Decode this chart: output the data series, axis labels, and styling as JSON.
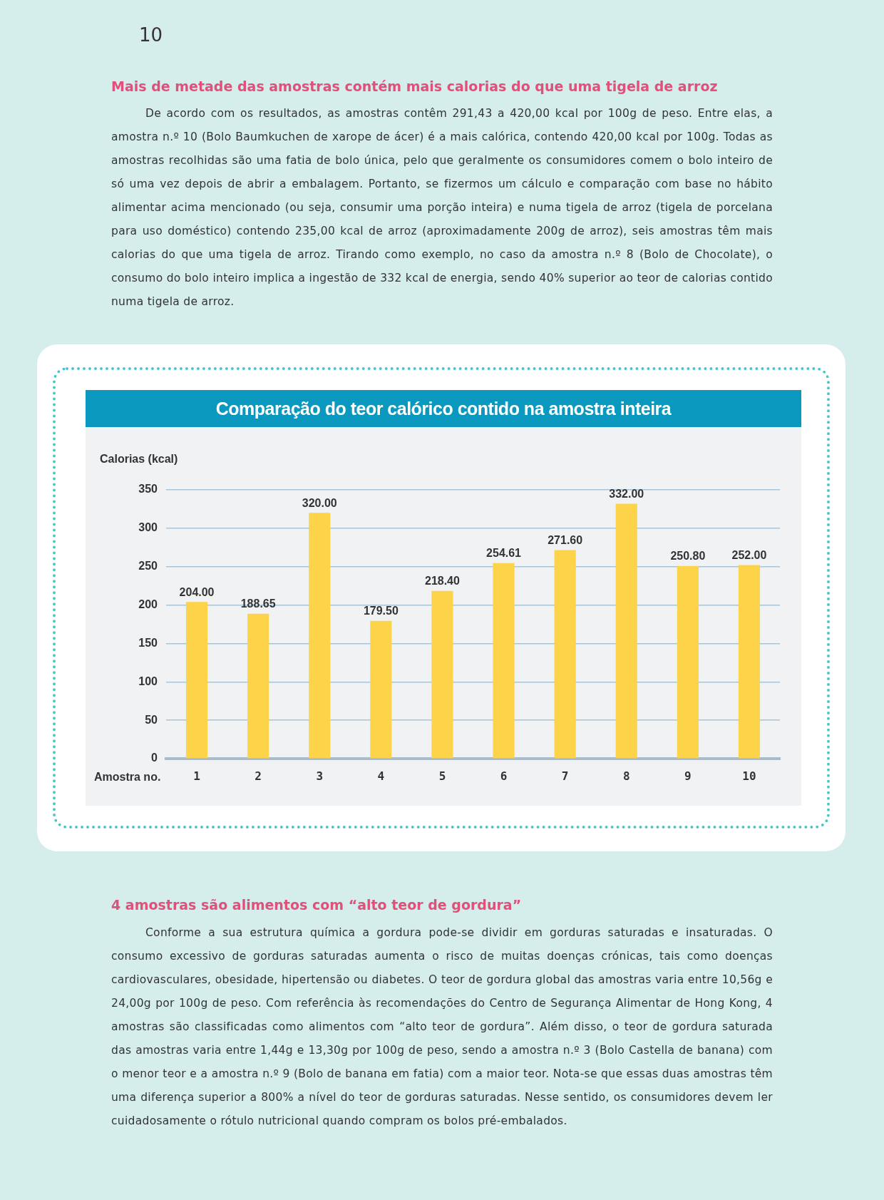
{
  "chart_data": {
    "type": "bar",
    "title": "Comparação do teor calórico contido na amostra inteira",
    "xlabel": "Amostra no.",
    "ylabel": "Calorias (kcal)",
    "categories": [
      "1",
      "2",
      "3",
      "4",
      "5",
      "6",
      "7",
      "8",
      "9",
      "10"
    ],
    "values": [
      204.0,
      188.65,
      320.0,
      179.5,
      218.4,
      254.61,
      271.6,
      332.0,
      250.8,
      252.0
    ],
    "color": "#fdd34a",
    "ylim": [
      0,
      350
    ],
    "yticks": [
      0,
      50,
      100,
      150,
      200,
      250,
      300,
      350
    ],
    "grid": "y",
    "value_labels": [
      "204.00",
      "188.65",
      "320.00",
      "179.50",
      "218.40",
      "254.61",
      "271.60",
      "332.00",
      "250.80",
      "252.00"
    ],
    "annotations": [
      "10",
      "Mais de metade das amostras contém mais calorias do que uma tigela de arroz",
      "De acordo com os resultados, as amostras contêm 291,43 a 420,00 kcal por 100g de peso. Entre elas, a amostra n.º 10 (Bolo Baumkuchen de xarope de ácer) é a mais calórica, contendo 420,00 kcal por 100g. Todas as amostras recolhidas são uma fatia de bolo única, pelo que geralmente os consumidores comem o bolo inteiro de só uma vez depois de abrir a embalagem. Portanto, se fizermos um cálculo e comparação com base no hábito alimentar acima mencionado (ou seja, consumir uma porção inteira) e numa tigela de arroz (tigela de porcelana para uso doméstico) contendo 235,00 kcal de arroz (aproximadamente 200g de arroz), seis amostras têm mais calorias do que uma tigela de arroz. Tirando como exemplo, no caso da amostra n.º 8 (Bolo de Chocolate), o consumo do bolo inteiro implica a ingestão de 332 kcal de energia, sendo 40% superior ao teor de calorias contido numa tigela de arroz.",
      "4 amostras são alimentos com “alto teor de gordura”",
      "Conforme a sua estrutura química a gordura pode-se dividir em gorduras saturadas e insaturadas. O consumo excessivo de gorduras saturadas aumenta o risco de muitas doenças crónicas, tais como doenças cardiovasculares, obesidade, hipertensão ou diabetes. O teor de gordura global das amostras varia entre 10,56g e 24,00g por 100g de peso. Com referência às recomendações do Centro de Segurança Alimentar de Hong Kong, 4 amostras são classificadas como alimentos com “alto teor de gordura”. Além disso, o teor de gordura saturada das amostras varia entre 1,44g e 13,30g por 100g de peso, sendo a amostra n.º 3 (Bolo Castella de banana) com o menor teor e a amostra n.º 9 (Bolo de banana em fatia) com a maior teor. Nota-se que essas duas amostras têm uma diferença superior a 800% a nível do teor de gorduras saturadas. Nesse sentido, os consumidores devem ler cuidadosamente o rótulo nutricional quando compram os bolos pré-embalados."
    ]
  }
}
